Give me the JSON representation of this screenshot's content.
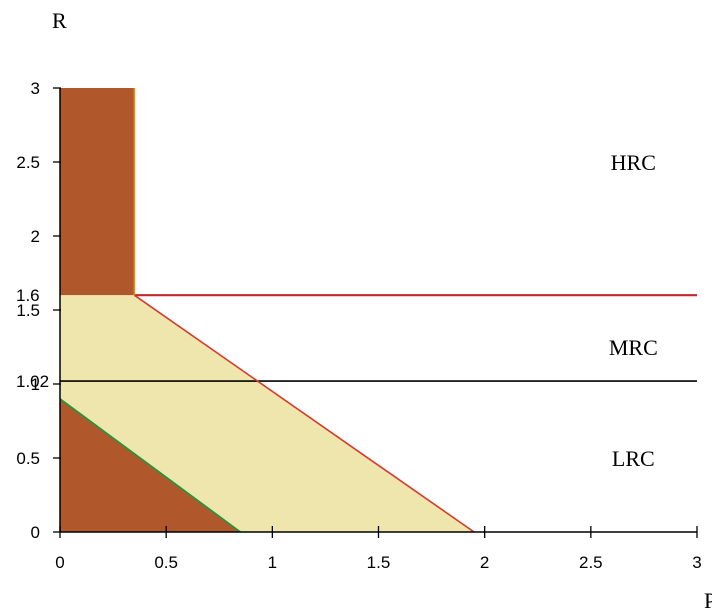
{
  "chart_data": {
    "type": "area",
    "ylabel": "R",
    "xlabel": "P",
    "xlim": [
      0,
      3
    ],
    "ylim": [
      0,
      3
    ],
    "x_ticks": [
      {
        "value": 0,
        "label": "0"
      },
      {
        "value": 0.5,
        "label": "0.5"
      },
      {
        "value": 1,
        "label": "1"
      },
      {
        "value": 1.5,
        "label": "1.5"
      },
      {
        "value": 2,
        "label": "2"
      },
      {
        "value": 2.5,
        "label": "2.5"
      },
      {
        "value": 3,
        "label": "3"
      }
    ],
    "y_ticks": [
      {
        "value": 0,
        "label": "0"
      },
      {
        "value": 0.5,
        "label": "0.5"
      },
      {
        "value": 1,
        "label": "1"
      },
      {
        "value": 1.5,
        "label": "1.5"
      },
      {
        "value": 2,
        "label": "2"
      },
      {
        "value": 2.5,
        "label": "2.5"
      },
      {
        "value": 3,
        "label": "3"
      }
    ],
    "y_marker_labels": [
      {
        "value": 1.6,
        "label": "1.6"
      },
      {
        "value": 1.02,
        "label": "1.02"
      }
    ],
    "regions": [
      {
        "name": "upper-left-block",
        "color": "#b0582b",
        "points": [
          [
            0,
            1.6
          ],
          [
            0.35,
            1.6
          ],
          [
            0.35,
            3
          ],
          [
            0,
            3
          ]
        ]
      },
      {
        "name": "middle-band",
        "color": "#efe6ad",
        "points": [
          [
            0,
            1.6
          ],
          [
            0.35,
            1.6
          ],
          [
            1.95,
            0
          ],
          [
            0.85,
            0
          ],
          [
            0,
            0.9
          ]
        ]
      },
      {
        "name": "lower-triangle",
        "color": "#b0582b",
        "points": [
          [
            0,
            0
          ],
          [
            0.85,
            0
          ],
          [
            0,
            0.9
          ]
        ]
      }
    ],
    "lines": [
      {
        "name": "hrc-boundary",
        "color": "#c0282a",
        "points": [
          [
            0.35,
            1.6
          ],
          [
            3,
            1.6
          ]
        ]
      },
      {
        "name": "mrc-boundary",
        "color": "#000000",
        "points": [
          [
            0,
            1.02
          ],
          [
            3,
            1.02
          ]
        ]
      },
      {
        "name": "upper-diagonal",
        "color": "#d83a2a",
        "points": [
          [
            0.35,
            1.6
          ],
          [
            1.95,
            0
          ]
        ]
      },
      {
        "name": "lower-diagonal",
        "color": "#1a9a3a",
        "points": [
          [
            0,
            0.9
          ],
          [
            0.85,
            0
          ]
        ]
      },
      {
        "name": "vertical-edge",
        "color": "#e08a24",
        "points": [
          [
            0.35,
            1.6
          ],
          [
            0.35,
            3
          ]
        ]
      }
    ],
    "annotations": [
      {
        "text": "HRC",
        "x": 2.7,
        "y": 2.5
      },
      {
        "text": "MRC",
        "x": 2.7,
        "y": 1.25
      },
      {
        "text": "LRC",
        "x": 2.7,
        "y": 0.5
      }
    ]
  }
}
